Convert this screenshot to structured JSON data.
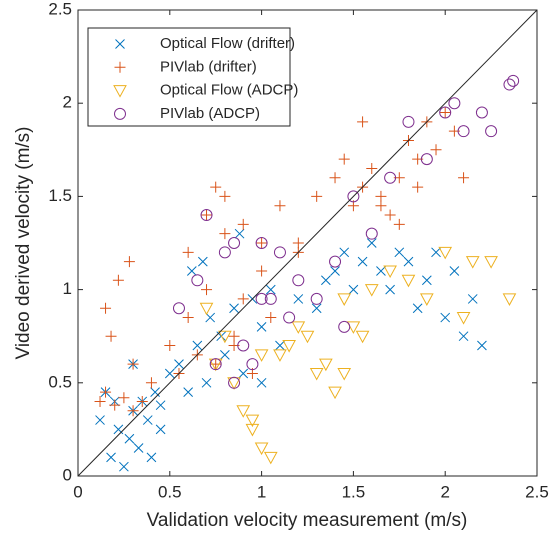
{
  "chart_data": {
    "type": "scatter",
    "xlabel": "Validation velocity measurement (m/s)",
    "ylabel": "Video derived velocity (m/s)",
    "xlim": [
      0,
      2.5
    ],
    "ylim": [
      0,
      2.5
    ],
    "xticks": [
      0,
      0.5,
      1,
      1.5,
      2,
      2.5
    ],
    "yticks": [
      0,
      0.5,
      1,
      1.5,
      2,
      2.5
    ],
    "diagonal": true,
    "legend": "upper left",
    "series": [
      {
        "name": "Optical Flow (drifter)",
        "color": "#0072BD",
        "marker": "x",
        "x": [
          0.12,
          0.18,
          0.22,
          0.25,
          0.28,
          0.3,
          0.33,
          0.35,
          0.38,
          0.4,
          0.42,
          0.45,
          0.2,
          0.15,
          0.5,
          0.55,
          0.6,
          0.65,
          0.7,
          0.72,
          0.78,
          0.8,
          0.85,
          0.9,
          0.95,
          1.0,
          1.05,
          1.1,
          0.62,
          0.68,
          0.88,
          1.2,
          1.3,
          1.35,
          1.4,
          1.45,
          1.5,
          1.55,
          1.6,
          1.65,
          1.7,
          1.75,
          1.8,
          1.85,
          1.9,
          1.95,
          2.0,
          2.05,
          2.1,
          2.15,
          2.2,
          0.3,
          0.45,
          1.0
        ],
        "values": [
          0.3,
          0.1,
          0.25,
          0.05,
          0.2,
          0.35,
          0.15,
          0.4,
          0.3,
          0.1,
          0.45,
          0.38,
          0.4,
          0.45,
          0.55,
          0.6,
          0.45,
          0.7,
          0.5,
          0.85,
          0.75,
          0.65,
          0.9,
          0.55,
          0.95,
          0.8,
          1.0,
          0.7,
          1.1,
          1.15,
          1.3,
          0.95,
          0.9,
          1.05,
          1.1,
          1.2,
          1.0,
          1.15,
          1.25,
          1.1,
          1.0,
          1.2,
          1.15,
          0.9,
          1.05,
          1.2,
          0.85,
          1.1,
          0.75,
          0.95,
          0.7,
          0.6,
          0.25,
          0.5
        ]
      },
      {
        "name": "PIVlab (drifter)",
        "color": "#D95319",
        "marker": "+",
        "x": [
          0.12,
          0.15,
          0.2,
          0.25,
          0.3,
          0.35,
          0.4,
          0.18,
          0.28,
          0.15,
          0.22,
          0.3,
          0.5,
          0.55,
          0.6,
          0.65,
          0.7,
          0.75,
          0.8,
          0.85,
          0.9,
          0.95,
          1.0,
          1.05,
          0.6,
          0.7,
          0.8,
          0.9,
          1.0,
          1.1,
          1.2,
          0.75,
          0.85,
          1.3,
          1.4,
          1.45,
          1.5,
          1.55,
          1.6,
          1.65,
          1.7,
          1.75,
          1.8,
          1.85,
          1.9,
          1.95,
          2.0,
          2.05,
          2.1,
          1.55,
          1.65,
          1.75,
          1.85,
          1.2
        ],
        "values": [
          0.4,
          0.45,
          0.38,
          0.42,
          0.35,
          0.4,
          0.5,
          0.75,
          1.15,
          0.9,
          1.05,
          0.6,
          0.7,
          0.55,
          0.85,
          0.65,
          1.0,
          0.6,
          1.3,
          0.75,
          0.95,
          0.55,
          1.1,
          0.85,
          1.2,
          1.4,
          1.5,
          1.35,
          1.25,
          1.45,
          1.25,
          1.55,
          0.7,
          1.5,
          1.6,
          1.7,
          1.45,
          1.55,
          1.65,
          1.5,
          1.4,
          1.6,
          1.8,
          1.55,
          1.9,
          1.75,
          1.95,
          1.85,
          1.6,
          1.9,
          1.45,
          1.35,
          1.7,
          1.2
        ]
      },
      {
        "name": "Optical Flow (ADCP)",
        "color": "#EDB120",
        "marker": "v",
        "x": [
          0.7,
          0.75,
          0.8,
          0.85,
          0.9,
          0.95,
          1.0,
          1.05,
          1.1,
          1.15,
          1.2,
          1.25,
          1.3,
          1.35,
          1.4,
          1.45,
          1.5,
          1.55,
          1.6,
          1.7,
          1.8,
          1.9,
          2.0,
          2.1,
          2.15,
          2.25,
          2.35,
          0.95,
          1.0,
          1.45
        ],
        "values": [
          0.9,
          0.6,
          0.75,
          0.5,
          0.35,
          0.3,
          0.15,
          0.1,
          0.65,
          0.7,
          0.8,
          0.75,
          0.55,
          0.6,
          0.45,
          0.55,
          0.8,
          0.75,
          1.0,
          1.1,
          1.05,
          0.95,
          1.2,
          0.85,
          1.15,
          1.15,
          0.95,
          0.25,
          0.65,
          0.95
        ]
      },
      {
        "name": "PIVlab (ADCP)",
        "color": "#7E2F8E",
        "marker": "o",
        "x": [
          0.55,
          0.65,
          0.7,
          0.75,
          0.8,
          0.85,
          0.9,
          0.95,
          1.0,
          1.05,
          1.1,
          1.15,
          1.2,
          1.3,
          1.4,
          1.45,
          1.5,
          1.6,
          1.7,
          1.8,
          1.9,
          2.0,
          2.05,
          2.1,
          2.2,
          2.25,
          2.35,
          2.37,
          0.85,
          1.0
        ],
        "values": [
          0.9,
          1.05,
          1.4,
          0.6,
          1.2,
          0.5,
          0.7,
          0.6,
          1.25,
          0.95,
          1.2,
          0.85,
          1.05,
          0.95,
          1.15,
          0.8,
          1.5,
          1.3,
          1.6,
          1.9,
          1.7,
          1.95,
          2.0,
          1.85,
          1.95,
          1.85,
          2.1,
          2.12,
          1.25,
          0.95
        ]
      }
    ]
  }
}
